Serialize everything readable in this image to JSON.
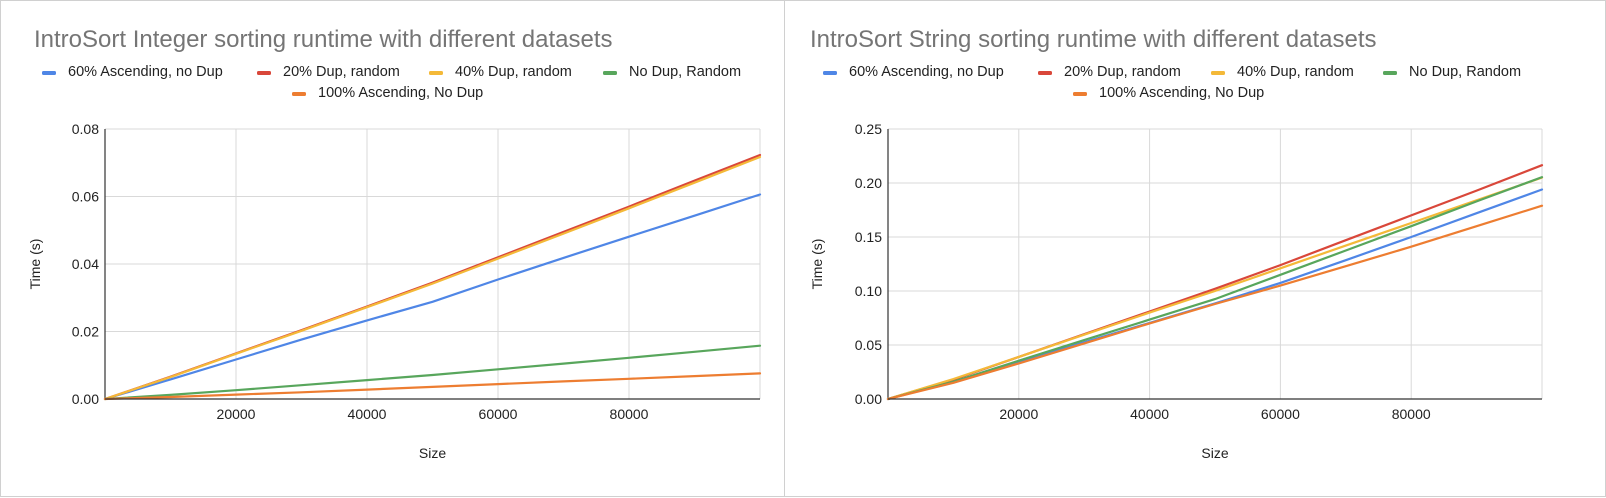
{
  "chart_data": [
    {
      "type": "line",
      "title": "IntroSort Integer sorting runtime with different datasets",
      "xlabel": "Size",
      "ylabel": "Time (s)",
      "xlim": [
        0,
        100000
      ],
      "ylim": [
        0,
        0.08
      ],
      "x_ticks": [
        "20000",
        "40000",
        "60000",
        "80000"
      ],
      "y_ticks": [
        "0.00",
        "0.02",
        "0.04",
        "0.06",
        "0.08"
      ],
      "grid": true,
      "legend_position": "top",
      "x": [
        0,
        10000,
        20000,
        30000,
        40000,
        50000,
        60000,
        70000,
        80000,
        90000,
        100000
      ],
      "series": [
        {
          "name": "60% Ascending, no Dup",
          "color": "#4f86e6",
          "values": [
            0,
            0.0058,
            0.0117,
            0.0176,
            0.0233,
            0.0288,
            0.0354,
            0.0418,
            0.0481,
            0.0543,
            0.0606
          ]
        },
        {
          "name": "20% Dup, random",
          "color": "#d9473a",
          "values": [
            0,
            0.0066,
            0.0135,
            0.0204,
            0.0274,
            0.0345,
            0.042,
            0.0495,
            0.057,
            0.0647,
            0.0723
          ]
        },
        {
          "name": "40% Dup, random",
          "color": "#f4b938",
          "values": [
            0,
            0.0065,
            0.0134,
            0.0202,
            0.0272,
            0.0342,
            0.0416,
            0.049,
            0.0565,
            0.0641,
            0.0717
          ]
        },
        {
          "name": "No Dup, Random",
          "color": "#58a65c",
          "values": [
            0,
            0.0012,
            0.0026,
            0.0041,
            0.0056,
            0.0071,
            0.0088,
            0.0105,
            0.0122,
            0.014,
            0.0158
          ]
        },
        {
          "name": "100% Ascending, No Dup",
          "color": "#ed7d31",
          "values": [
            0,
            0.0006,
            0.0013,
            0.002,
            0.0028,
            0.0036,
            0.0044,
            0.0052,
            0.006,
            0.0068,
            0.0076
          ]
        }
      ]
    },
    {
      "type": "line",
      "title": "IntroSort String sorting runtime with different datasets",
      "xlabel": "Size",
      "ylabel": "Time (s)",
      "xlim": [
        0,
        100000
      ],
      "ylim": [
        0,
        0.25
      ],
      "x_ticks": [
        "20000",
        "40000",
        "60000",
        "80000"
      ],
      "y_ticks": [
        "0.00",
        "0.05",
        "0.10",
        "0.15",
        "0.20",
        "0.25"
      ],
      "grid": true,
      "legend_position": "top",
      "x": [
        0,
        10000,
        20000,
        30000,
        40000,
        50000,
        60000,
        70000,
        80000,
        90000,
        100000
      ],
      "series": [
        {
          "name": "60% Ascending, no Dup",
          "color": "#4f86e6",
          "values": [
            0,
            0.016,
            0.0345,
            0.0525,
            0.0705,
            0.0885,
            0.1075,
            0.1285,
            0.15,
            0.172,
            0.194
          ]
        },
        {
          "name": "20% Dup, random",
          "color": "#d9473a",
          "values": [
            0,
            0.018,
            0.039,
            0.06,
            0.081,
            0.102,
            0.124,
            0.147,
            0.17,
            0.193,
            0.2165
          ]
        },
        {
          "name": "40% Dup, random",
          "color": "#f4b938",
          "values": [
            0,
            0.0185,
            0.039,
            0.0595,
            0.08,
            0.1,
            0.121,
            0.142,
            0.163,
            0.184,
            0.205
          ]
        },
        {
          "name": "No Dup, Random",
          "color": "#58a65c",
          "values": [
            0,
            0.016,
            0.0355,
            0.0545,
            0.0735,
            0.0925,
            0.115,
            0.1375,
            0.16,
            0.183,
            0.2055
          ]
        },
        {
          "name": "100% Ascending, No Dup",
          "color": "#ed7d31",
          "values": [
            0,
            0.015,
            0.033,
            0.0515,
            0.07,
            0.088,
            0.105,
            0.123,
            0.141,
            0.16,
            0.179
          ]
        }
      ]
    }
  ]
}
